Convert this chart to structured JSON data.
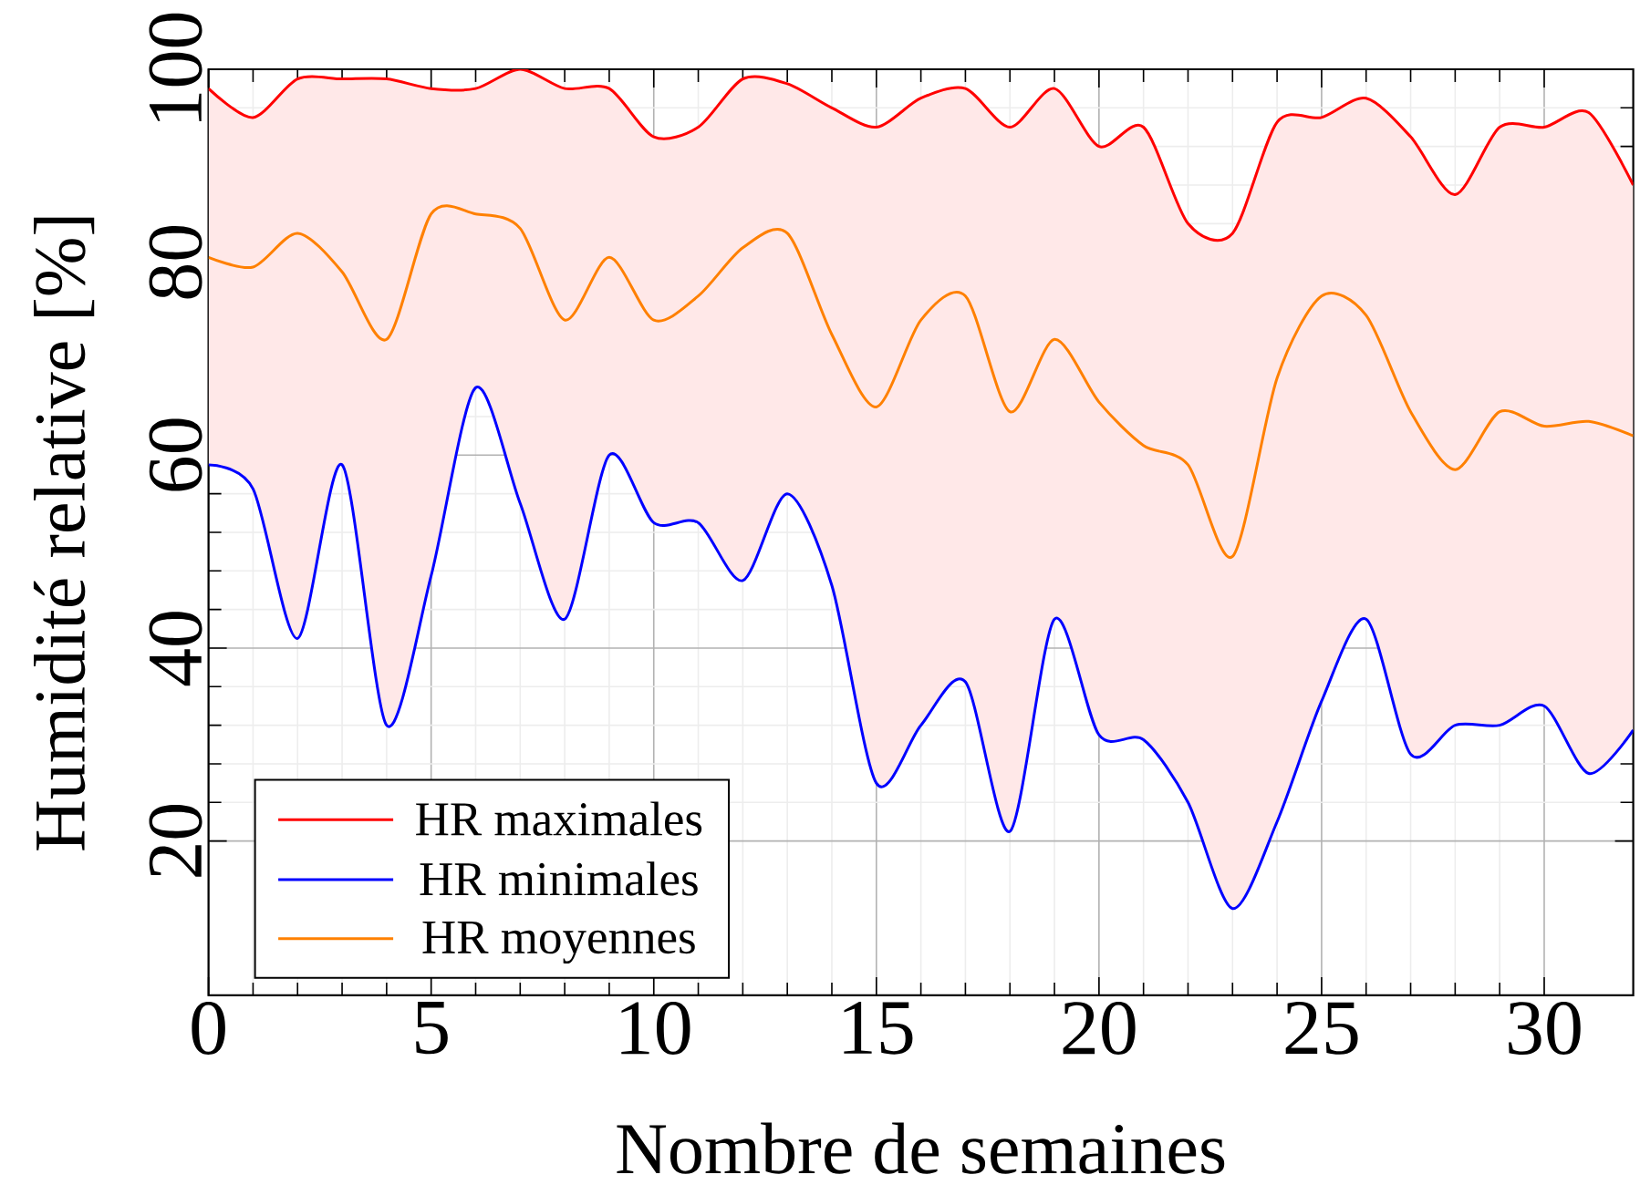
{
  "chart_data": {
    "type": "line",
    "xlabel": "Nombre de semaines",
    "ylabel": "Humidité relative [%]",
    "x": [
      0,
      1,
      2,
      3,
      4,
      5,
      6,
      7,
      8,
      9,
      10,
      11,
      12,
      13,
      14,
      15,
      16,
      17,
      18,
      19,
      20,
      21,
      22,
      23,
      24,
      25,
      26,
      27,
      28,
      29,
      30,
      31,
      32
    ],
    "xlim": [
      0,
      32
    ],
    "ylim": [
      4,
      100
    ],
    "xticks": [
      0,
      5,
      10,
      15,
      20,
      25,
      30
    ],
    "yticks": [
      20,
      40,
      60,
      80,
      100
    ],
    "grid": true,
    "legend": "bottom left",
    "series": [
      {
        "name": "HR maximales",
        "color": "#ff0000",
        "values": [
          98,
          95,
          99,
          99,
          99,
          98,
          98,
          100,
          98,
          98,
          93,
          94,
          99,
          98.5,
          96,
          94,
          97,
          98,
          94,
          98,
          92,
          94,
          84,
          83,
          94.5,
          95,
          97,
          93,
          87,
          94,
          94,
          95.5,
          88
        ],
        "lower": [
          59,
          56.5,
          41,
          59,
          32,
          47.5,
          67,
          55,
          43,
          60,
          53,
          53,
          47,
          56,
          46.5,
          26,
          32,
          36.5,
          21,
          43,
          31,
          30.5,
          24,
          13,
          22,
          34.5,
          43,
          29,
          32,
          32,
          34,
          27,
          31.5
        ],
        "upper": [
          98,
          95,
          99,
          99,
          99,
          98,
          98,
          100,
          98,
          98,
          93,
          94,
          99,
          98.5,
          96,
          94,
          97,
          98,
          94,
          98,
          92,
          94,
          84,
          83,
          94.5,
          95,
          97,
          93,
          87,
          94,
          94,
          95.5,
          88
        ]
      },
      {
        "name": "HR minimales",
        "color": "#0000ff",
        "values": [
          59,
          56.5,
          41,
          59,
          32,
          47.5,
          67,
          55,
          43,
          60,
          53,
          53,
          47,
          56,
          46.5,
          26,
          32,
          36.5,
          21,
          43,
          31,
          30.5,
          24,
          13,
          22,
          34.5,
          43,
          29,
          32,
          32,
          34,
          27,
          31.5
        ]
      },
      {
        "name": "HR moyennes",
        "color": "#ff8000",
        "values": [
          80.5,
          79.5,
          83,
          79,
          72,
          85,
          85,
          83.5,
          74,
          80.5,
          74,
          76.5,
          81.5,
          83,
          72.5,
          65,
          74,
          76.5,
          64.5,
          72,
          65.5,
          61,
          59,
          49.5,
          68,
          76.5,
          74.5,
          64.5,
          58.5,
          64.5,
          63,
          63.5,
          62
        ]
      }
    ]
  }
}
